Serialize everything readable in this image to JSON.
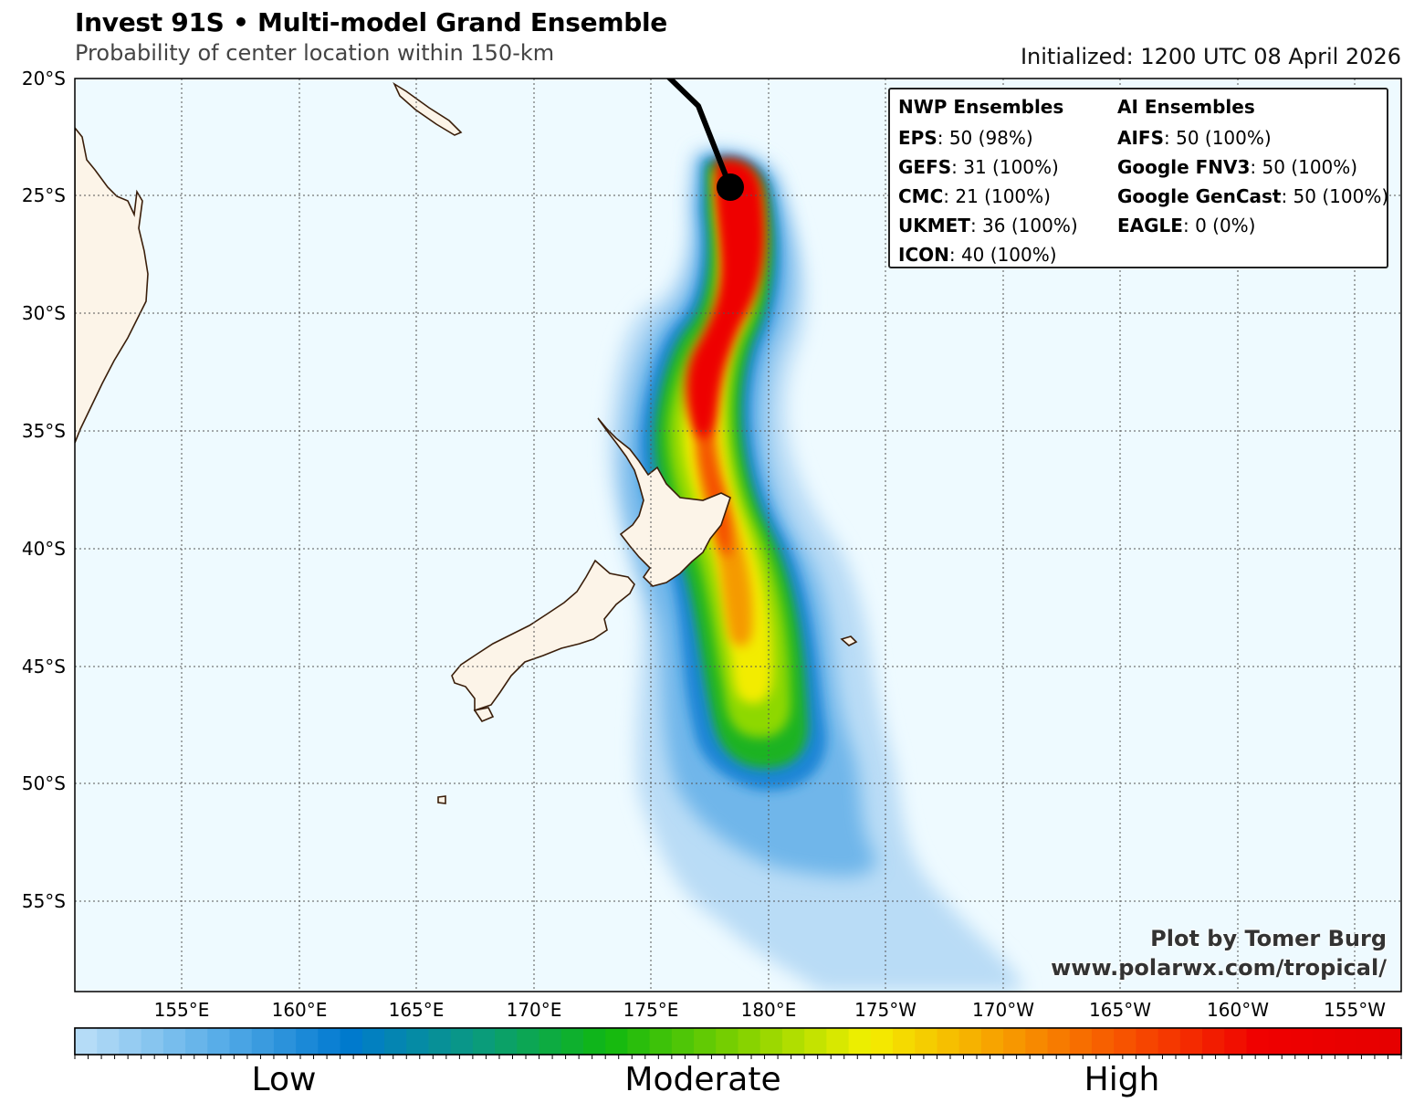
{
  "header": {
    "title": "Invest 91S • Multi-model Grand Ensemble",
    "subtitle": "Probability of center location within 150-km",
    "initialized": "Initialized: 1200 UTC 08 April 2026"
  },
  "map": {
    "lat_labels": [
      "20°S",
      "25°S",
      "30°S",
      "35°S",
      "40°S",
      "45°S",
      "50°S",
      "55°S"
    ],
    "lon_labels": [
      "155°E",
      "160°E",
      "165°E",
      "170°E",
      "175°E",
      "180°E",
      "175°W",
      "170°W",
      "165°W",
      "160°W",
      "155°W"
    ],
    "ocean_color": "#eefaff",
    "land_color": "#fcf4e8",
    "coast_color": "#3a1e0a",
    "current_position_icon": "storm-center-dot"
  },
  "legend": {
    "nwp_header": "NWP Ensembles",
    "ai_header": "AI Ensembles",
    "nwp": [
      {
        "name": "EPS",
        "value": ": 50 (98%)"
      },
      {
        "name": "GEFS",
        "value": ": 31 (100%)"
      },
      {
        "name": "CMC",
        "value": ": 21 (100%)"
      },
      {
        "name": "UKMET",
        "value": ": 36 (100%)"
      },
      {
        "name": "ICON",
        "value": ": 40 (100%)"
      }
    ],
    "ai": [
      {
        "name": "AIFS",
        "value": ": 50 (100%)"
      },
      {
        "name": "Google FNV3",
        "value": ": 50 (100%)"
      },
      {
        "name": "Google GenCast",
        "value": ": 50 (100%)"
      },
      {
        "name": "EAGLE",
        "value": ": 0 (0%)"
      }
    ]
  },
  "credit": {
    "line1": "Plot by Tomer Burg",
    "line2": "www.polarwx.com/tropical/"
  },
  "colorbar": {
    "low": "Low",
    "moderate": "Moderate",
    "high": "High",
    "colors": [
      "#b5dcf7",
      "#5aaee8",
      "#0079d0",
      "#0a9a80",
      "#10b810",
      "#7ed000",
      "#f4f000",
      "#f7a000",
      "#f75000",
      "#f00000",
      "#e60000"
    ]
  }
}
